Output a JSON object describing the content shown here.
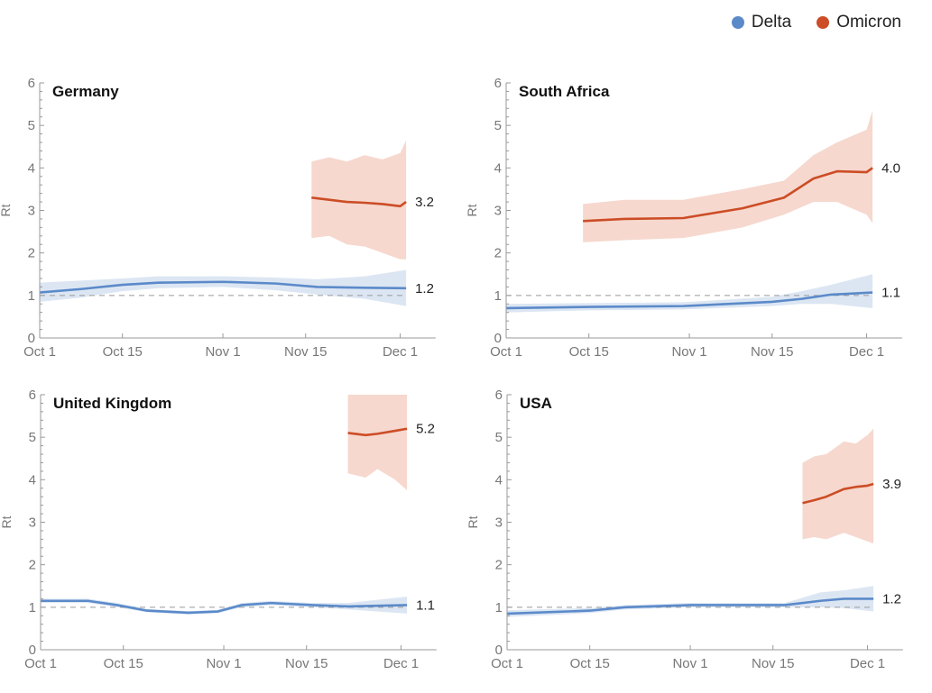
{
  "legend": [
    {
      "name": "Delta",
      "color": "#5b8ac9"
    },
    {
      "name": "Omicron",
      "color": "#cc4d26"
    }
  ],
  "chart_data": {
    "type": "line",
    "x_unit": "days since Oct 1",
    "xticks": [
      {
        "day": 0,
        "label": "Oct 1"
      },
      {
        "day": 14,
        "label": "Oct 15"
      },
      {
        "day": 31,
        "label": "Nov 1"
      },
      {
        "day": 45,
        "label": "Nov 15"
      },
      {
        "day": 61,
        "label": "Dec 1"
      }
    ],
    "xlim": [
      0,
      67
    ],
    "ylim": [
      0,
      6
    ],
    "yticks": [
      "0",
      "1",
      "2",
      "3",
      "4",
      "5",
      "6"
    ],
    "ylabel": "Rt",
    "reference_line": 1,
    "band_colors": {
      "Delta": "#dce6f3",
      "Omicron": "#f6d8ce"
    },
    "panels": [
      {
        "title": "Germany",
        "series": [
          {
            "name": "Delta",
            "end_label": "1.2",
            "points": [
              [
                0,
                1.07,
                0.85,
                1.3
              ],
              [
                7,
                1.15,
                0.95,
                1.35
              ],
              [
                14,
                1.25,
                1.1,
                1.4
              ],
              [
                20,
                1.3,
                1.17,
                1.45
              ],
              [
                31,
                1.32,
                1.2,
                1.45
              ],
              [
                40,
                1.28,
                1.12,
                1.42
              ],
              [
                47,
                1.2,
                1.02,
                1.38
              ],
              [
                55,
                1.18,
                0.92,
                1.45
              ],
              [
                62,
                1.17,
                0.75,
                1.6
              ]
            ]
          },
          {
            "name": "Omicron",
            "end_label": "3.2",
            "points": [
              [
                46,
                3.3,
                2.35,
                4.15
              ],
              [
                49,
                3.25,
                2.4,
                4.25
              ],
              [
                52,
                3.2,
                2.2,
                4.15
              ],
              [
                55,
                3.18,
                2.15,
                4.3
              ],
              [
                58,
                3.15,
                2.0,
                4.2
              ],
              [
                61,
                3.1,
                1.85,
                4.35
              ],
              [
                62,
                3.2,
                1.85,
                4.65
              ]
            ]
          }
        ]
      },
      {
        "title": "South Africa",
        "series": [
          {
            "name": "Delta",
            "end_label": "1.1",
            "points": [
              [
                0,
                0.7,
                0.6,
                0.8
              ],
              [
                14,
                0.73,
                0.65,
                0.82
              ],
              [
                30,
                0.75,
                0.67,
                0.84
              ],
              [
                45,
                0.85,
                0.75,
                0.97
              ],
              [
                50,
                0.92,
                0.8,
                1.1
              ],
              [
                55,
                1.02,
                0.8,
                1.25
              ],
              [
                62,
                1.07,
                0.7,
                1.5
              ]
            ]
          },
          {
            "name": "Omicron",
            "end_label": "4.0",
            "points": [
              [
                13,
                2.75,
                2.25,
                3.15
              ],
              [
                20,
                2.8,
                2.3,
                3.25
              ],
              [
                30,
                2.82,
                2.35,
                3.25
              ],
              [
                40,
                3.05,
                2.6,
                3.5
              ],
              [
                47,
                3.3,
                2.9,
                3.7
              ],
              [
                52,
                3.75,
                3.2,
                4.3
              ],
              [
                56,
                3.92,
                3.2,
                4.6
              ],
              [
                61,
                3.9,
                2.9,
                4.9
              ],
              [
                62,
                4.0,
                2.7,
                5.35
              ]
            ]
          }
        ]
      },
      {
        "title": "United Kingdom",
        "series": [
          {
            "name": "Delta",
            "end_label": "1.1",
            "points": [
              [
                0,
                1.15,
                1.1,
                1.2
              ],
              [
                8,
                1.15,
                1.1,
                1.2
              ],
              [
                13,
                1.05,
                1.0,
                1.1
              ],
              [
                18,
                0.92,
                0.88,
                0.96
              ],
              [
                25,
                0.87,
                0.83,
                0.91
              ],
              [
                30,
                0.9,
                0.86,
                0.94
              ],
              [
                34,
                1.05,
                1.0,
                1.1
              ],
              [
                39,
                1.1,
                1.05,
                1.15
              ],
              [
                46,
                1.05,
                1.0,
                1.1
              ],
              [
                52,
                1.02,
                0.95,
                1.1
              ],
              [
                62,
                1.05,
                0.85,
                1.25
              ]
            ]
          },
          {
            "name": "Omicron",
            "end_label": "5.2",
            "points": [
              [
                52,
                5.1,
                4.15,
                6.0
              ],
              [
                55,
                5.05,
                4.05,
                6.0
              ],
              [
                57,
                5.08,
                4.25,
                6.0
              ],
              [
                60,
                5.15,
                4.0,
                6.0
              ],
              [
                62,
                5.2,
                3.75,
                6.0
              ]
            ]
          }
        ]
      },
      {
        "title": "USA",
        "series": [
          {
            "name": "Delta",
            "end_label": "1.2",
            "points": [
              [
                0,
                0.85,
                0.77,
                0.93
              ],
              [
                14,
                0.92,
                0.86,
                0.98
              ],
              [
                20,
                1.0,
                0.95,
                1.05
              ],
              [
                31,
                1.05,
                1.0,
                1.1
              ],
              [
                40,
                1.05,
                1.0,
                1.1
              ],
              [
                47,
                1.05,
                1.0,
                1.1
              ],
              [
                53,
                1.15,
                1.0,
                1.35
              ],
              [
                57,
                1.2,
                0.98,
                1.4
              ],
              [
                62,
                1.2,
                0.9,
                1.5
              ]
            ]
          },
          {
            "name": "Omicron",
            "end_label": "3.9",
            "points": [
              [
                50,
                3.45,
                2.6,
                4.4
              ],
              [
                52,
                3.52,
                2.65,
                4.55
              ],
              [
                54,
                3.6,
                2.6,
                4.6
              ],
              [
                57,
                3.78,
                2.75,
                4.9
              ],
              [
                59,
                3.83,
                2.65,
                4.85
              ],
              [
                61,
                3.86,
                2.55,
                5.05
              ],
              [
                62,
                3.9,
                2.5,
                5.2
              ]
            ]
          }
        ]
      }
    ]
  }
}
